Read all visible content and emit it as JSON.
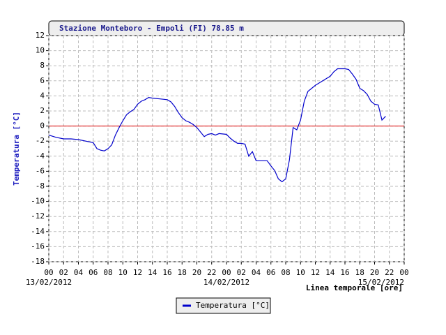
{
  "chart_data": {
    "type": "line",
    "title": "Stazione Monteboro - Empoli (FI) 78.85 m",
    "ylabel": "Temperatura [°C]",
    "xlabel": "Linea temporale [ore]",
    "grid": true,
    "zero_line_color": "#dd0000",
    "legend_position": "bottom",
    "xlim": [
      0,
      48
    ],
    "ylim": [
      -18,
      12
    ],
    "yticks": [
      -18,
      -16,
      -14,
      -12,
      -10,
      -8,
      -6,
      -4,
      -2,
      0,
      2,
      4,
      6,
      8,
      10,
      12
    ],
    "xticks": [
      {
        "value": 0,
        "label": "00"
      },
      {
        "value": 2,
        "label": "02"
      },
      {
        "value": 4,
        "label": "04"
      },
      {
        "value": 6,
        "label": "06"
      },
      {
        "value": 8,
        "label": "08"
      },
      {
        "value": 10,
        "label": "10"
      },
      {
        "value": 12,
        "label": "12"
      },
      {
        "value": 14,
        "label": "14"
      },
      {
        "value": 16,
        "label": "16"
      },
      {
        "value": 18,
        "label": "18"
      },
      {
        "value": 20,
        "label": "20"
      },
      {
        "value": 22,
        "label": "22"
      },
      {
        "value": 24,
        "label": "00"
      },
      {
        "value": 26,
        "label": "02"
      },
      {
        "value": 28,
        "label": "04"
      },
      {
        "value": 30,
        "label": "06"
      },
      {
        "value": 32,
        "label": "08"
      },
      {
        "value": 34,
        "label": "10"
      },
      {
        "value": 36,
        "label": "12"
      },
      {
        "value": 38,
        "label": "14"
      },
      {
        "value": 40,
        "label": "16"
      },
      {
        "value": 42,
        "label": "18"
      },
      {
        "value": 44,
        "label": "20"
      },
      {
        "value": 46,
        "label": "22"
      },
      {
        "value": 48,
        "label": "00"
      }
    ],
    "date_labels": [
      {
        "value": 0,
        "label": "13/02/2012"
      },
      {
        "value": 24,
        "label": "14/02/2012"
      },
      {
        "value": 48,
        "label": "15/02/2012"
      }
    ],
    "x": [
      0,
      1,
      2,
      3,
      4,
      5,
      6,
      6.5,
      7,
      7.5,
      8,
      8.5,
      9,
      9.5,
      10,
      10.5,
      11,
      11.5,
      12,
      12.5,
      13,
      13.5,
      14,
      15,
      16,
      16.5,
      17,
      17.5,
      18,
      18.5,
      19,
      19.5,
      20,
      20.5,
      21,
      21.5,
      22,
      22.5,
      23,
      24,
      24.5,
      25,
      25.5,
      26,
      26.5,
      27,
      27.5,
      28,
      29,
      29.5,
      30,
      30.5,
      31,
      31.5,
      32,
      32.5,
      33,
      33.5,
      34,
      34.5,
      35,
      35.5,
      36,
      37,
      38,
      38.5,
      39,
      40,
      40.5,
      41,
      41.5,
      42,
      42.5,
      43,
      43.5,
      44,
      44.5,
      45,
      45.5
    ],
    "series": [
      {
        "name": "Temperatura [°C]",
        "color": "#0000cc",
        "values": [
          -1.2,
          -1.5,
          -1.7,
          -1.7,
          -1.8,
          -2.0,
          -2.2,
          -3.0,
          -3.2,
          -3.3,
          -3.0,
          -2.5,
          -1.2,
          -0.2,
          0.7,
          1.5,
          1.9,
          2.2,
          2.9,
          3.3,
          3.5,
          3.8,
          3.7,
          3.6,
          3.5,
          3.2,
          2.6,
          1.8,
          1.1,
          0.7,
          0.5,
          0.2,
          -0.2,
          -0.8,
          -1.4,
          -1.1,
          -1.0,
          -1.2,
          -1.0,
          -1.1,
          -1.6,
          -2.0,
          -2.3,
          -2.3,
          -2.4,
          -4.0,
          -3.4,
          -4.6,
          -4.6,
          -4.6,
          -5.3,
          -5.9,
          -7.0,
          -7.4,
          -7.0,
          -4.5,
          -0.2,
          -0.5,
          0.8,
          3.3,
          4.6,
          5.0,
          5.4,
          6.0,
          6.6,
          7.2,
          7.6,
          7.6,
          7.5,
          6.9,
          6.2,
          5.0,
          4.7,
          4.2,
          3.3,
          2.9,
          2.8,
          0.8,
          1.3
        ]
      }
    ]
  }
}
